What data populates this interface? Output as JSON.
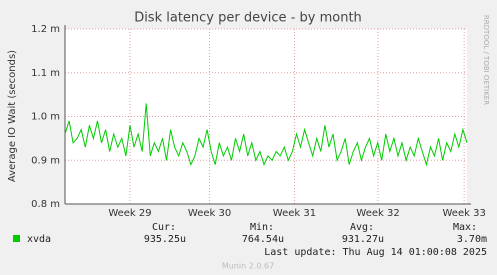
{
  "chart_data": {
    "type": "line",
    "title": "Disk latency per device - by month",
    "ylabel": "Average IO Wait (seconds)",
    "ylim": [
      0.8,
      1.2
    ],
    "yticks": [
      {
        "value": 0.8,
        "label": "0.8 m"
      },
      {
        "value": 0.9,
        "label": "0.9 m"
      },
      {
        "value": 1.0,
        "label": "1.0 m"
      },
      {
        "value": 1.1,
        "label": "1.1 m"
      },
      {
        "value": 1.2,
        "label": "1.2 m"
      }
    ],
    "xlim": [
      0,
      99
    ],
    "xticks": [
      {
        "value": 16,
        "label": "Week 29"
      },
      {
        "value": 35.6,
        "label": "Week 30"
      },
      {
        "value": 56.5,
        "label": "Week 31"
      },
      {
        "value": 77.1,
        "label": "Week 32"
      },
      {
        "value": 98.3,
        "label": "Week 33"
      }
    ],
    "grid": true,
    "series": [
      {
        "name": "xvda",
        "color": "#00cc00",
        "values": [
          0.96,
          0.99,
          0.94,
          0.95,
          0.97,
          0.93,
          0.98,
          0.95,
          0.99,
          0.94,
          0.97,
          0.92,
          0.96,
          0.93,
          0.95,
          0.91,
          0.98,
          0.93,
          0.96,
          0.92,
          1.03,
          0.91,
          0.94,
          0.92,
          0.95,
          0.9,
          0.97,
          0.93,
          0.91,
          0.94,
          0.92,
          0.89,
          0.91,
          0.95,
          0.93,
          0.97,
          0.92,
          0.89,
          0.94,
          0.91,
          0.93,
          0.9,
          0.95,
          0.92,
          0.96,
          0.91,
          0.94,
          0.9,
          0.92,
          0.89,
          0.91,
          0.9,
          0.92,
          0.91,
          0.93,
          0.9,
          0.92,
          0.96,
          0.93,
          0.97,
          0.94,
          0.91,
          0.95,
          0.92,
          0.98,
          0.93,
          0.96,
          0.9,
          0.92,
          0.95,
          0.89,
          0.92,
          0.94,
          0.9,
          0.93,
          0.95,
          0.91,
          0.94,
          0.9,
          0.96,
          0.92,
          0.95,
          0.91,
          0.94,
          0.9,
          0.93,
          0.91,
          0.95,
          0.92,
          0.89,
          0.93,
          0.91,
          0.95,
          0.9,
          0.94,
          0.92,
          0.96,
          0.93,
          0.97,
          0.94
        ]
      }
    ],
    "legend_stats": {
      "labels": [
        "Cur:",
        "Min:",
        "Avg:",
        "Max:"
      ],
      "values": [
        "935.25u",
        "764.54u",
        "931.27u",
        "3.70m"
      ]
    },
    "last_update": "Last update: Thu Aug 14 01:00:08 2025",
    "side_text": "RRDTOOL / TOBI OETIKER",
    "footer": "Munin 2.0.67"
  }
}
